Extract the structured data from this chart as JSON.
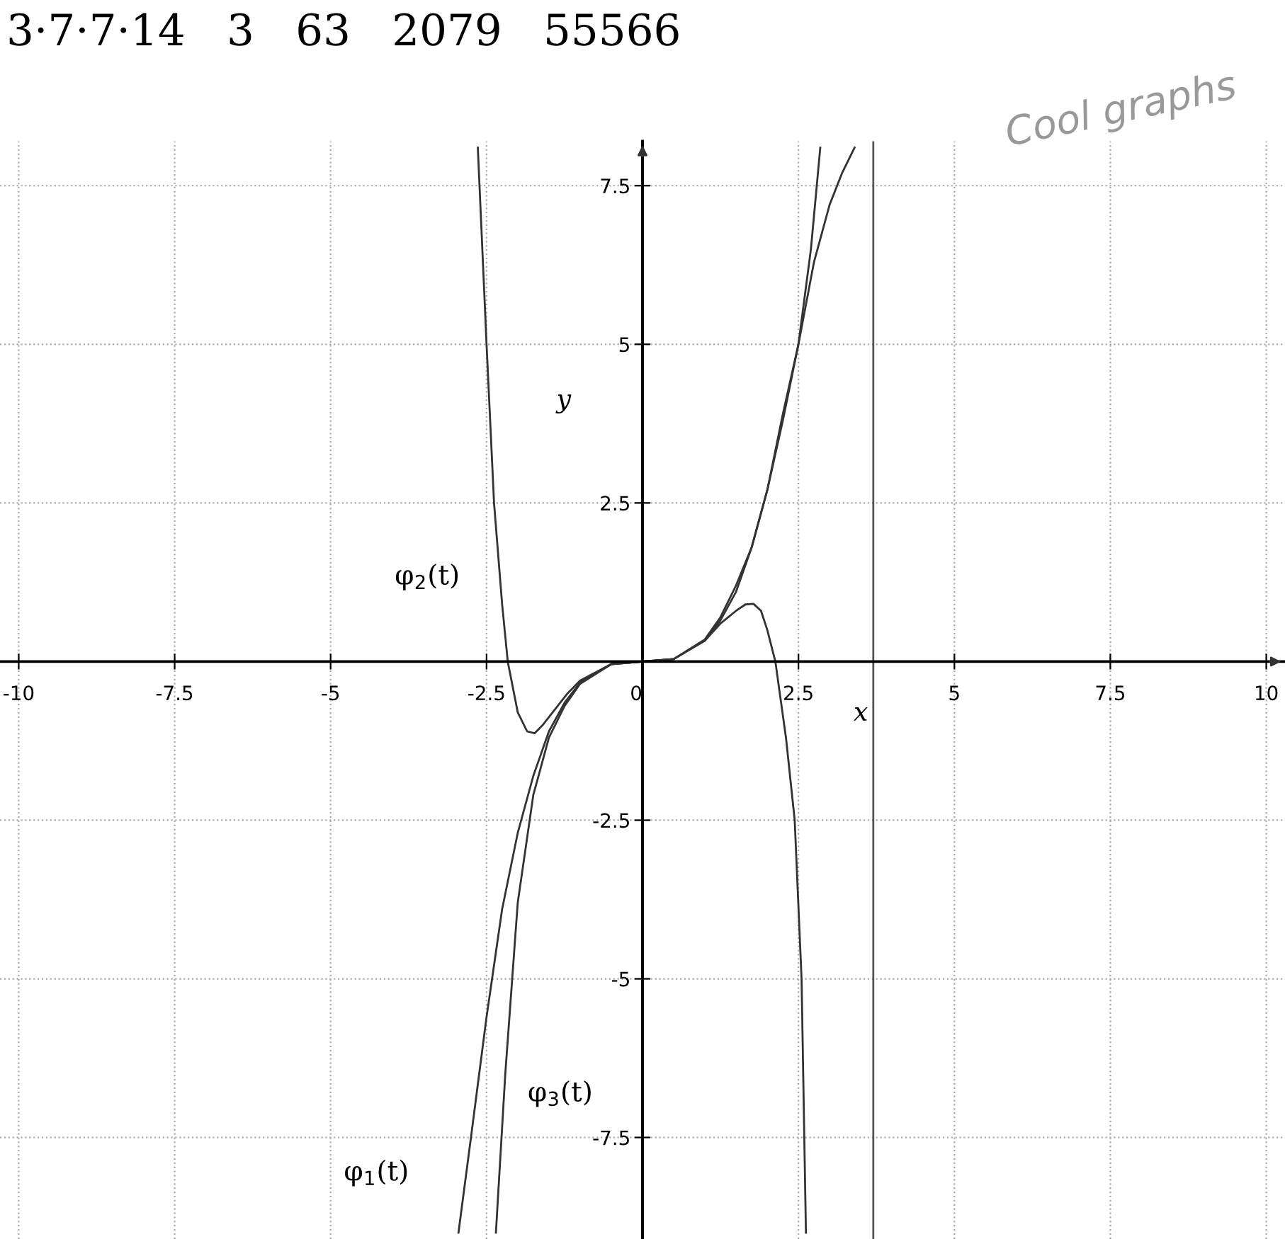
{
  "chart_data": {
    "type": "line",
    "xlabel": "x",
    "ylabel": "y",
    "annotations": [
      "3·7·7·14   3   63   2079   55566",
      "Cool graphs"
    ],
    "xlim": [
      -10.3,
      10.3
    ],
    "ylim": [
      -9.1,
      8.2
    ],
    "xticks": [
      -10,
      -7.5,
      -5,
      -2.5,
      0,
      2.5,
      5,
      7.5,
      10
    ],
    "yticks": [
      -7.5,
      -5,
      -2.5,
      2.5,
      5,
      7.5
    ],
    "grid": true,
    "marker": "none",
    "line_style": "solid",
    "legend": false,
    "ref_lines": [
      {
        "axis": "x",
        "value": 3.7,
        "color": "#555555"
      }
    ],
    "series": [
      {
        "name": "φ$_{1}$(t)",
        "color": "#333333",
        "x": [
          -2.95,
          -2.75,
          -2.5,
          -2.25,
          -2.0,
          -1.75,
          -1.5,
          -1.25,
          -1.0,
          -0.5,
          0,
          0.5,
          1.0,
          1.25,
          1.5,
          1.75,
          2.0,
          2.25,
          2.5,
          2.75,
          3.0,
          3.2,
          3.4
        ],
        "values": [
          -9.0,
          -7.5,
          -5.6,
          -3.9,
          -2.7,
          -1.8,
          -1.1,
          -0.65,
          -0.33,
          -0.04,
          0,
          0.04,
          0.33,
          0.65,
          1.1,
          1.8,
          2.7,
          3.8,
          5.0,
          6.3,
          7.2,
          7.7,
          8.1
        ]
      },
      {
        "name": "φ$_{2}$(t)",
        "color": "#333333",
        "x": [
          -2.64,
          -2.5,
          -2.38,
          -2.25,
          -2.16,
          -2.0,
          -1.85,
          -1.73,
          -1.6,
          -1.4,
          -1.2,
          -1.0,
          -0.5,
          0,
          0.5,
          1.0,
          1.25,
          1.5,
          1.65,
          1.78,
          1.9,
          2.0,
          2.13,
          2.3,
          2.44,
          2.55,
          2.62
        ],
        "values": [
          8.1,
          5.0,
          2.5,
          0.9,
          0,
          -0.8,
          -1.1,
          -1.13,
          -1.0,
          -0.75,
          -0.5,
          -0.3,
          -0.04,
          0,
          0.04,
          0.33,
          0.6,
          0.8,
          0.9,
          0.91,
          0.8,
          0.5,
          0,
          -1.2,
          -2.5,
          -5.0,
          -9.0
        ]
      },
      {
        "name": "φ$_{3}$(t)",
        "color": "#333333",
        "x": [
          -2.35,
          -2.2,
          -2.0,
          -1.75,
          -1.5,
          -1.25,
          -1.0,
          -0.5,
          0,
          0.5,
          1.0,
          1.25,
          1.5,
          1.75,
          2.0,
          2.25,
          2.5,
          2.7,
          2.85
        ],
        "values": [
          -9.0,
          -6.5,
          -3.8,
          -2.1,
          -1.2,
          -0.7,
          -0.35,
          -0.04,
          0,
          0.04,
          0.35,
          0.7,
          1.2,
          1.8,
          2.7,
          3.9,
          5.0,
          6.5,
          8.1
        ]
      }
    ]
  }
}
